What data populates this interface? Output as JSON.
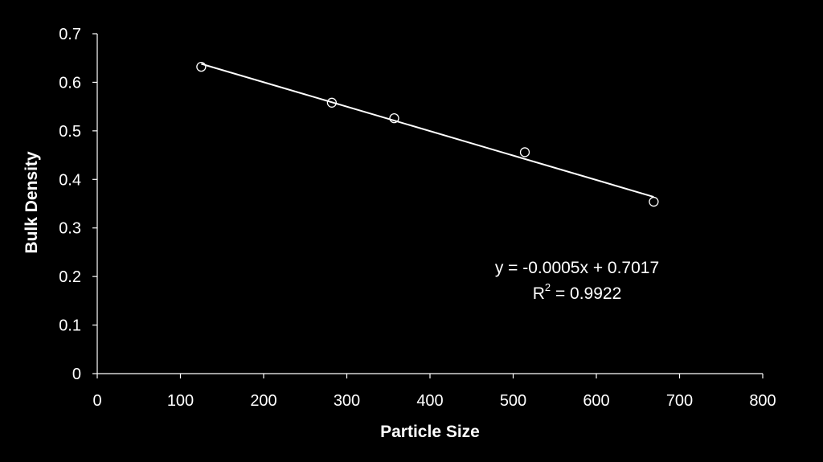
{
  "chart_data": {
    "type": "scatter",
    "title": "",
    "xlabel": "Particle Size",
    "ylabel": "Bulk Density",
    "xlim": [
      0,
      800
    ],
    "ylim": [
      0,
      0.7
    ],
    "x_ticks": [
      0,
      100,
      200,
      300,
      400,
      500,
      600,
      700,
      800
    ],
    "y_ticks": [
      0,
      0.1,
      0.2,
      0.3,
      0.4,
      0.5,
      0.6,
      0.7
    ],
    "x_tick_labels": [
      "0",
      "100",
      "200",
      "300",
      "400",
      "500",
      "600",
      "700",
      "800"
    ],
    "y_tick_labels": [
      "0",
      "0.1",
      "0.2",
      "0.3",
      "0.4",
      "0.5",
      "0.6",
      "0.7"
    ],
    "grid": false,
    "legend": "none",
    "series": [
      {
        "points": [
          {
            "x": 125,
            "y": 0.632
          },
          {
            "x": 282,
            "y": 0.558
          },
          {
            "x": 357,
            "y": 0.526
          },
          {
            "x": 514,
            "y": 0.456
          },
          {
            "x": 669,
            "y": 0.354
          }
        ],
        "marker": "open-circle",
        "color": "#ffffff"
      }
    ],
    "trendline": {
      "type": "linear",
      "x_range": [
        125,
        669
      ],
      "y_range": [
        0.638,
        0.364
      ],
      "color": "#ffffff",
      "equation_label": "y = -0.0005x + 0.7017",
      "r2_prefix": "R",
      "r2_superscript": "2",
      "r2_suffix": " = 0.9922"
    },
    "colors": {
      "background": "#000000",
      "foreground": "#ffffff"
    }
  }
}
